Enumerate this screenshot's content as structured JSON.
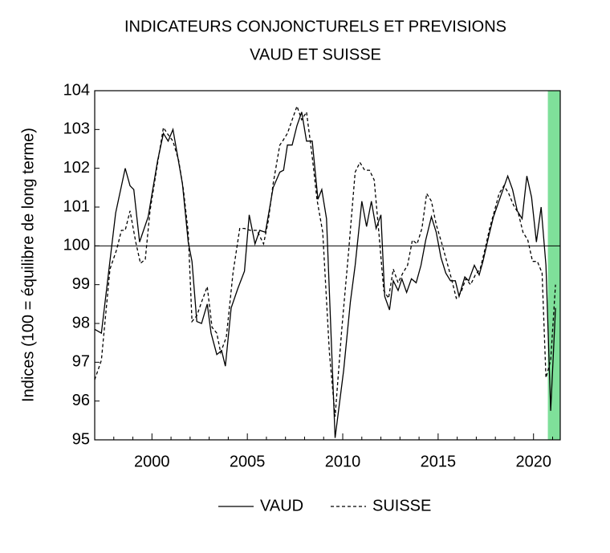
{
  "chart_data": {
    "type": "line",
    "title": "INDICATEURS CONJONCTURELS ET PREVISIONS",
    "subtitle": "VAUD ET SUISSE",
    "ylabel": "Indices (100 = équilibre de long terme)",
    "xlim": [
      1997,
      2021.4
    ],
    "xticks": [
      2000,
      2005,
      2010,
      2015,
      2020
    ],
    "xminorticks": [
      1997,
      1998,
      1999,
      2001,
      2002,
      2003,
      2004,
      2006,
      2007,
      2008,
      2009,
      2011,
      2012,
      2013,
      2014,
      2016,
      2017,
      2018,
      2019,
      2021
    ],
    "ylim": [
      95,
      104
    ],
    "yticks": [
      95,
      96,
      97,
      98,
      99,
      100,
      101,
      102,
      103,
      104
    ],
    "hline": 100,
    "shade": [
      2020.75,
      2021.4
    ],
    "shade_color": "#7fe09a",
    "series": [
      {
        "name": "VAUD",
        "color": "#000000",
        "dash": false,
        "x": [
          1997,
          1997.35,
          1998.1,
          1998.6,
          1998.85,
          1999.05,
          1999.35,
          1999.8,
          2000.3,
          2000.6,
          2000.85,
          2001.1,
          2001.6,
          2001.9,
          2002.1,
          2002.35,
          2002.6,
          2002.9,
          2003.1,
          2003.4,
          2003.65,
          2003.85,
          2004.15,
          2004.5,
          2004.85,
          2005.1,
          2005.4,
          2005.65,
          2005.95,
          2006.35,
          2006.7,
          2006.9,
          2007.1,
          2007.35,
          2007.6,
          2007.85,
          2008.1,
          2008.4,
          2008.7,
          2008.9,
          2009.15,
          2009.6,
          2010.05,
          2010.4,
          2010.65,
          2011,
          2011.25,
          2011.5,
          2011.75,
          2012,
          2012.2,
          2012.45,
          2012.65,
          2012.9,
          2013.1,
          2013.35,
          2013.6,
          2013.85,
          2014.1,
          2014.35,
          2014.65,
          2014.9,
          2015.15,
          2015.4,
          2015.65,
          2015.9,
          2016.1,
          2016.4,
          2016.6,
          2016.9,
          2017.15,
          2017.35,
          2017.65,
          2017.9,
          2018.15,
          2018.4,
          2018.65,
          2018.9,
          2019.15,
          2019.4,
          2019.65,
          2019.9,
          2020.15,
          2020.4,
          2020.65,
          2020.9,
          2021.15
        ],
        "values": [
          97.85,
          97.75,
          100.85,
          102,
          101.55,
          101.45,
          100.1,
          100.75,
          102.2,
          102.9,
          102.7,
          103,
          101.6,
          100.1,
          99.6,
          98.05,
          98,
          98.5,
          97.75,
          97.2,
          97.3,
          96.9,
          98.4,
          98.9,
          99.35,
          100.8,
          100.05,
          100.4,
          100.35,
          101.5,
          101.9,
          101.95,
          102.6,
          102.6,
          103.1,
          103.45,
          102.7,
          102.7,
          101.2,
          101.45,
          100.7,
          95.05,
          96.8,
          98.55,
          99.5,
          101.15,
          100.5,
          101.15,
          100.45,
          100.8,
          98.7,
          98.35,
          99.1,
          98.85,
          99.15,
          98.8,
          99.15,
          99.05,
          99.5,
          100.15,
          100.75,
          100.35,
          99.7,
          99.3,
          99.1,
          99.1,
          98.7,
          99.2,
          99.1,
          99.5,
          99.25,
          99.6,
          100.25,
          100.75,
          101.1,
          101.45,
          101.8,
          101.45,
          100.9,
          100.7,
          101.8,
          101.25,
          100.1,
          101,
          99.5,
          95.75,
          98.4
        ]
      },
      {
        "name": "SUISSE",
        "color": "#000000",
        "dash": true,
        "x": [
          1997,
          1997.35,
          1997.8,
          1998.15,
          1998.4,
          1998.6,
          1998.85,
          1999.15,
          1999.4,
          1999.65,
          1999.9,
          2000.25,
          2000.6,
          2000.8,
          2001.1,
          2001.4,
          2001.65,
          2001.9,
          2002.1,
          2002.35,
          2002.6,
          2002.9,
          2003.15,
          2003.4,
          2003.6,
          2003.9,
          2004.25,
          2004.6,
          2004.85,
          2005.15,
          2005.5,
          2005.85,
          2006.1,
          2006.35,
          2006.7,
          2006.85,
          2007.1,
          2007.35,
          2007.6,
          2007.85,
          2008.1,
          2008.4,
          2008.65,
          2008.95,
          2009.3,
          2009.6,
          2009.95,
          2010.3,
          2010.65,
          2010.9,
          2011.15,
          2011.4,
          2011.65,
          2011.9,
          2012.15,
          2012.4,
          2012.65,
          2012.9,
          2013.15,
          2013.4,
          2013.65,
          2013.9,
          2014.15,
          2014.4,
          2014.65,
          2014.9,
          2015.2,
          2015.45,
          2015.7,
          2015.95,
          2016.2,
          2016.45,
          2016.7,
          2016.95,
          2017.2,
          2017.45,
          2017.7,
          2017.95,
          2018.2,
          2018.45,
          2018.7,
          2018.95,
          2019.2,
          2019.45,
          2019.7,
          2019.95,
          2020.2,
          2020.45,
          2020.65,
          2020.9,
          2021.15
        ],
        "values": [
          96.55,
          97.05,
          99.4,
          99.9,
          100.4,
          100.4,
          100.9,
          100.1,
          99.55,
          99.65,
          100.9,
          102,
          103.05,
          102.9,
          102.7,
          102.2,
          101.45,
          100.35,
          98.05,
          98.2,
          98.55,
          98.95,
          97.9,
          97.75,
          97.25,
          97.65,
          99.3,
          100.45,
          100.45,
          100.4,
          100.4,
          100.05,
          100.65,
          101.6,
          102.6,
          102.7,
          102.9,
          103.25,
          103.6,
          103.25,
          103.45,
          102.3,
          101.2,
          100.35,
          97.25,
          95.6,
          97.85,
          99.8,
          101.9,
          102.15,
          101.95,
          101.95,
          101.7,
          100.3,
          98.85,
          98.65,
          99.4,
          99.05,
          99.3,
          99.5,
          100.15,
          100.05,
          100.45,
          101.35,
          101.15,
          100.55,
          100.05,
          99.6,
          99.15,
          98.65,
          98.8,
          99.15,
          99,
          99.25,
          99.4,
          99.9,
          100.45,
          100.9,
          101.35,
          101.55,
          101.35,
          101.05,
          100.85,
          100.35,
          100.15,
          99.6,
          99.6,
          99.3,
          96.6,
          97.05,
          99
        ]
      }
    ]
  }
}
